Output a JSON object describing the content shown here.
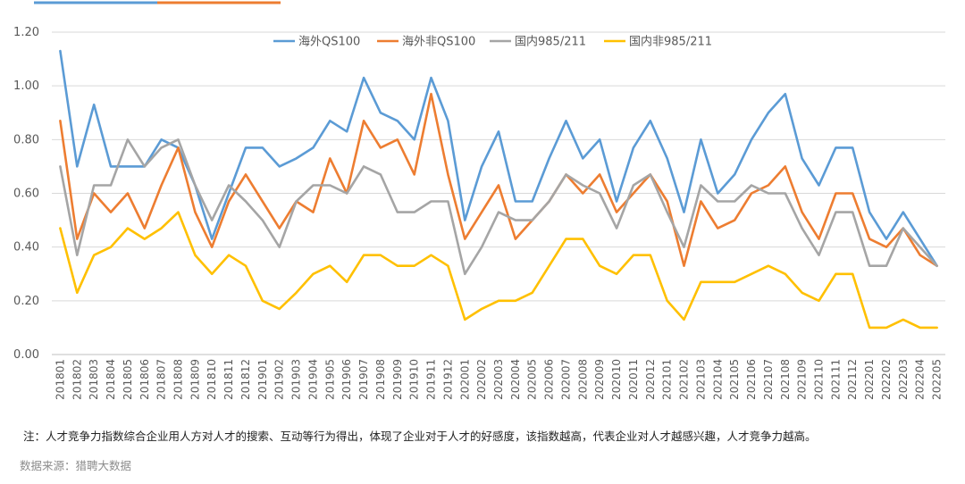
{
  "chart_data": {
    "type": "line",
    "title": "",
    "xlabel": "",
    "ylabel": "",
    "ylim": [
      0,
      1.2
    ],
    "yticks": [
      "0.00",
      "0.20",
      "0.40",
      "0.60",
      "0.80",
      "1.00",
      "1.20"
    ],
    "grid": true,
    "legend_position": "top",
    "categories": [
      "201801",
      "201802",
      "201803",
      "201804",
      "201805",
      "201806",
      "201807",
      "201808",
      "201809",
      "201810",
      "201811",
      "201812",
      "201901",
      "201902",
      "201903",
      "201904",
      "201905",
      "201906",
      "201907",
      "201908",
      "201909",
      "201910",
      "201911",
      "201912",
      "202001",
      "202002",
      "202003",
      "202004",
      "202005",
      "202006",
      "202007",
      "202008",
      "202009",
      "202010",
      "202011",
      "202012",
      "202101",
      "202102",
      "202103",
      "202104",
      "202105",
      "202106",
      "202107",
      "202108",
      "202109",
      "202110",
      "202111",
      "202112",
      "202201",
      "202202",
      "202203",
      "202204",
      "202205"
    ],
    "series": [
      {
        "name": "海外QS100",
        "color": "#5B9BD5",
        "values": [
          1.13,
          0.7,
          0.93,
          0.7,
          0.7,
          0.7,
          0.8,
          0.77,
          0.63,
          0.43,
          0.6,
          0.77,
          0.77,
          0.7,
          0.73,
          0.77,
          0.87,
          0.83,
          1.03,
          0.9,
          0.87,
          0.8,
          1.03,
          0.87,
          0.5,
          0.7,
          0.83,
          0.57,
          0.57,
          0.73,
          0.87,
          0.73,
          0.8,
          0.57,
          0.77,
          0.87,
          0.73,
          0.53,
          0.8,
          0.6,
          0.67,
          0.8,
          0.9,
          0.97,
          0.73,
          0.63,
          0.77,
          0.77,
          0.53,
          0.43,
          0.53,
          0.43,
          0.33
        ]
      },
      {
        "name": "海外非QS100",
        "color": "#ED7D31",
        "values": [
          0.87,
          0.43,
          0.6,
          0.53,
          0.6,
          0.47,
          0.63,
          0.77,
          0.53,
          0.4,
          0.57,
          0.67,
          0.57,
          0.47,
          0.57,
          0.53,
          0.73,
          0.6,
          0.87,
          0.77,
          0.8,
          0.67,
          0.97,
          0.67,
          0.43,
          0.53,
          0.63,
          0.43,
          0.5,
          0.57,
          0.67,
          0.6,
          0.67,
          0.53,
          0.6,
          0.67,
          0.57,
          0.33,
          0.57,
          0.47,
          0.5,
          0.6,
          0.63,
          0.7,
          0.53,
          0.43,
          0.6,
          0.6,
          0.43,
          0.4,
          0.47,
          0.37,
          0.33
        ]
      },
      {
        "name": "国内985/211",
        "color": "#A5A5A5",
        "values": [
          0.7,
          0.37,
          0.63,
          0.63,
          0.8,
          0.7,
          0.77,
          0.8,
          0.63,
          0.5,
          0.63,
          0.57,
          0.5,
          0.4,
          0.57,
          0.63,
          0.63,
          0.6,
          0.7,
          0.67,
          0.53,
          0.53,
          0.57,
          0.57,
          0.3,
          0.4,
          0.53,
          0.5,
          0.5,
          0.57,
          0.67,
          0.63,
          0.6,
          0.47,
          0.63,
          0.67,
          0.53,
          0.4,
          0.63,
          0.57,
          0.57,
          0.63,
          0.6,
          0.6,
          0.47,
          0.37,
          0.53,
          0.53,
          0.33,
          0.33,
          0.47,
          0.4,
          0.33
        ]
      },
      {
        "name": "国内非985/211",
        "color": "#FFC000",
        "values": [
          0.47,
          0.23,
          0.37,
          0.4,
          0.47,
          0.43,
          0.47,
          0.53,
          0.37,
          0.3,
          0.37,
          0.33,
          0.2,
          0.17,
          0.23,
          0.3,
          0.33,
          0.27,
          0.37,
          0.37,
          0.33,
          0.33,
          0.37,
          0.33,
          0.13,
          0.17,
          0.2,
          0.2,
          0.23,
          0.33,
          0.43,
          0.43,
          0.33,
          0.3,
          0.37,
          0.37,
          0.2,
          0.13,
          0.27,
          0.27,
          0.27,
          0.3,
          0.33,
          0.3,
          0.23,
          0.2,
          0.3,
          0.3,
          0.1,
          0.1,
          0.13,
          0.1,
          0.1
        ]
      }
    ]
  },
  "note": "注：人才竞争力指数综合企业用人方对人才的搜索、互动等行为得出，体现了企业对于人才的好感度，该指数越高，代表企业对人才越感兴趣，人才竞争力越高。",
  "source": "数据来源：猎聘大数据"
}
